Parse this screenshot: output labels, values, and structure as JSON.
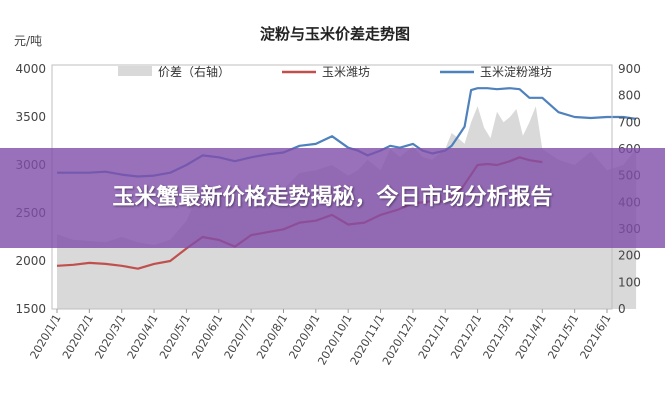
{
  "headline": "玉米蟹最新价格走势揭秘，今日市场分析报告",
  "chart_data": {
    "type": "line",
    "title": "淀粉与玉米价差走势图",
    "y_unit_left": "元/吨",
    "y_left": {
      "min": 1500,
      "max": 4000,
      "ticks": [
        "1500",
        "2000",
        "2500",
        "3000",
        "3500",
        "4000"
      ]
    },
    "y_right": {
      "min": 0,
      "max": 900,
      "ticks": [
        "0",
        "100",
        "200",
        "300",
        "400",
        "500",
        "600",
        "700",
        "800",
        "900"
      ]
    },
    "x_labels": [
      "2020/1/1",
      "2020/2/1",
      "2020/3/1",
      "2020/4/1",
      "2020/5/1",
      "2020/6/1",
      "2020/7/1",
      "2020/8/1",
      "2020/9/1",
      "2020/10/1",
      "2020/11/1",
      "2020/12/1",
      "2021/1/1",
      "2021/2/1",
      "2021/3/1",
      "2021/4/1",
      "2021/5/1",
      "2021/6/1"
    ],
    "legend_position": "top",
    "grid": false,
    "series": [
      {
        "name": "价差（右轴）",
        "type": "area",
        "axis": "right",
        "color": "#d9d9d9",
        "x": [
          0,
          0.5,
          1,
          1.5,
          2,
          2.5,
          3,
          3.5,
          4,
          4.5,
          5,
          5.5,
          6,
          6.5,
          7,
          7.5,
          8,
          8.5,
          9,
          9.3,
          9.6,
          10,
          10.3,
          10.6,
          11,
          11.3,
          11.6,
          12,
          12.2,
          12.4,
          12.6,
          12.8,
          13,
          13.2,
          13.4,
          13.6,
          13.8,
          14,
          14.2,
          14.4,
          14.6,
          14.8,
          15,
          15.5,
          16,
          16.5,
          17,
          17.5,
          17.9
        ],
        "values": [
          280,
          260,
          255,
          250,
          270,
          250,
          240,
          260,
          330,
          470,
          450,
          390,
          420,
          440,
          450,
          510,
          520,
          540,
          500,
          520,
          560,
          520,
          600,
          570,
          610,
          570,
          560,
          600,
          660,
          640,
          620,
          700,
          760,
          680,
          640,
          740,
          700,
          720,
          750,
          650,
          700,
          760,
          600,
          560,
          540,
          590,
          520,
          540,
          600
        ]
      },
      {
        "name": "玉米潍坊",
        "type": "line",
        "axis": "left",
        "color": "#c0504d",
        "x": [
          0,
          0.5,
          1,
          1.5,
          2,
          2.5,
          3,
          3.5,
          4,
          4.5,
          5,
          5.5,
          6,
          6.5,
          7,
          7.5,
          8,
          8.5,
          9,
          9.5,
          10,
          10.5,
          11,
          11.5,
          12,
          12.5,
          13,
          13.3,
          13.6,
          14,
          14.3,
          14.6,
          15
        ],
        "values": [
          1950,
          1960,
          1980,
          1970,
          1950,
          1920,
          1970,
          2000,
          2130,
          2250,
          2220,
          2150,
          2270,
          2300,
          2330,
          2400,
          2420,
          2480,
          2380,
          2400,
          2480,
          2530,
          2600,
          2620,
          2620,
          2750,
          3000,
          3010,
          3000,
          3040,
          3080,
          3050,
          3030
        ]
      },
      {
        "name": "玉米淀粉潍坊",
        "type": "line",
        "axis": "left",
        "color": "#4f81bd",
        "x": [
          0,
          0.5,
          1,
          1.5,
          2,
          2.5,
          3,
          3.5,
          4,
          4.5,
          5,
          5.5,
          6,
          6.5,
          7,
          7.5,
          8,
          8.5,
          9,
          9.3,
          9.6,
          10,
          10.3,
          10.6,
          11,
          11.3,
          11.6,
          12,
          12.2,
          12.4,
          12.6,
          12.8,
          13,
          13.3,
          13.6,
          14,
          14.3,
          14.6,
          15,
          15.5,
          16,
          16.5,
          17,
          17.5,
          17.9
        ],
        "values": [
          2920,
          2920,
          2920,
          2930,
          2900,
          2880,
          2890,
          2920,
          3000,
          3100,
          3080,
          3040,
          3080,
          3110,
          3130,
          3200,
          3220,
          3300,
          3180,
          3150,
          3100,
          3150,
          3200,
          3180,
          3220,
          3150,
          3120,
          3150,
          3200,
          3300,
          3400,
          3780,
          3800,
          3800,
          3790,
          3800,
          3790,
          3700,
          3700,
          3550,
          3500,
          3490,
          3500,
          3500,
          3480
        ]
      }
    ]
  }
}
